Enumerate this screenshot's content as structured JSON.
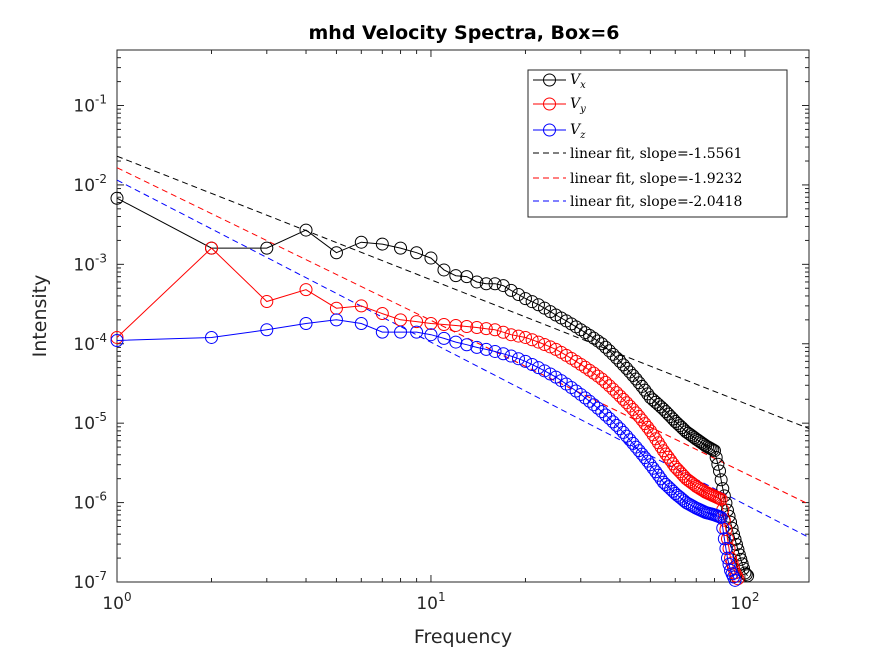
{
  "chart_data": {
    "type": "line",
    "title": "mhd Velocity Spectra, Box=6",
    "xlabel": "Frequency",
    "ylabel": "Intensity",
    "xscale": "log",
    "yscale": "log",
    "xlim": [
      1,
      160
    ],
    "ylim": [
      1e-07,
      0.5
    ],
    "grid": false,
    "legend_location": "top-right",
    "x_ticks": [
      {
        "base": "10",
        "exp": "0",
        "value": 1
      },
      {
        "base": "10",
        "exp": "1",
        "value": 10
      },
      {
        "base": "10",
        "exp": "2",
        "value": 100
      }
    ],
    "y_ticks": [
      {
        "base": "10",
        "exp": "-7",
        "value": 1e-07
      },
      {
        "base": "10",
        "exp": "-6",
        "value": 1e-06
      },
      {
        "base": "10",
        "exp": "-5",
        "value": 1e-05
      },
      {
        "base": "10",
        "exp": "-4",
        "value": 0.0001
      },
      {
        "base": "10",
        "exp": "-3",
        "value": 0.001
      },
      {
        "base": "10",
        "exp": "-2",
        "value": 0.01
      },
      {
        "base": "10",
        "exp": "-1",
        "value": 0.1
      }
    ],
    "series": [
      {
        "name": "Vx",
        "legend_main": "V",
        "legend_sub": "x",
        "color": "#000000",
        "style": "line-circle",
        "anchors": [
          [
            1,
            0.0068
          ],
          [
            2,
            0.0016
          ],
          [
            3,
            0.0016
          ],
          [
            4,
            0.0027
          ],
          [
            5,
            0.0014
          ],
          [
            6,
            0.0019
          ],
          [
            7,
            0.0018
          ],
          [
            8,
            0.0016
          ],
          [
            9,
            0.0014
          ],
          [
            10,
            0.0012
          ],
          [
            11,
            0.00085
          ],
          [
            12,
            0.00072
          ],
          [
            13,
            0.0007
          ],
          [
            14,
            0.0006
          ],
          [
            15,
            0.00057
          ],
          [
            16,
            0.00057
          ],
          [
            17,
            0.00054
          ],
          [
            18,
            0.00047
          ],
          [
            20,
            0.00037
          ],
          [
            22,
            0.00031
          ],
          [
            25,
            0.00023
          ],
          [
            30,
            0.00015
          ],
          [
            35,
            0.0001
          ],
          [
            40,
            6e-05
          ],
          [
            45,
            3.6e-05
          ],
          [
            50,
            2.1e-05
          ],
          [
            55,
            1.5e-05
          ],
          [
            60,
            1.05e-05
          ],
          [
            65,
            7.8e-06
          ],
          [
            70,
            6.3e-06
          ],
          [
            75,
            5.2e-06
          ],
          [
            80,
            4.5e-06
          ],
          [
            83,
            2.5e-06
          ],
          [
            85,
            1.5e-06
          ],
          [
            88,
            8e-07
          ],
          [
            92,
            4e-07
          ],
          [
            96,
            2.2e-07
          ],
          [
            100,
            1.3e-07
          ],
          [
            102,
            1.2e-07
          ]
        ]
      },
      {
        "name": "Vy",
        "legend_main": "V",
        "legend_sub": "y",
        "color": "#ff0000",
        "style": "line-circle",
        "anchors": [
          [
            1,
            0.00012
          ],
          [
            2,
            0.0016
          ],
          [
            3,
            0.00034
          ],
          [
            4,
            0.00048
          ],
          [
            5,
            0.00028
          ],
          [
            6,
            0.0003
          ],
          [
            7,
            0.00024
          ],
          [
            8,
            0.0002
          ],
          [
            9,
            0.00019
          ],
          [
            10,
            0.00018
          ],
          [
            12,
            0.00017
          ],
          [
            14,
            0.00016
          ],
          [
            16,
            0.00015
          ],
          [
            18,
            0.00013
          ],
          [
            20,
            0.00012
          ],
          [
            22,
            0.000105
          ],
          [
            25,
            8.5e-05
          ],
          [
            30,
            5.5e-05
          ],
          [
            35,
            3.6e-05
          ],
          [
            40,
            2.2e-05
          ],
          [
            45,
            1.35e-05
          ],
          [
            50,
            8e-06
          ],
          [
            55,
            4.5e-06
          ],
          [
            60,
            2.8e-06
          ],
          [
            65,
            2e-06
          ],
          [
            70,
            1.6e-06
          ],
          [
            75,
            1.35e-06
          ],
          [
            80,
            1.2e-06
          ],
          [
            84,
            1.1e-06
          ],
          [
            86,
            6e-07
          ],
          [
            88,
            3.5e-07
          ],
          [
            90,
            2e-07
          ],
          [
            93,
            1.3e-07
          ],
          [
            95,
            1.1e-07
          ]
        ]
      },
      {
        "name": "Vz",
        "legend_main": "V",
        "legend_sub": "z",
        "color": "#0000ff",
        "style": "line-circle",
        "anchors": [
          [
            1,
            0.00011
          ],
          [
            2,
            0.00012
          ],
          [
            3,
            0.00015
          ],
          [
            4,
            0.00018
          ],
          [
            5,
            0.0002
          ],
          [
            6,
            0.00018
          ],
          [
            7,
            0.00014
          ],
          [
            8,
            0.00014
          ],
          [
            9,
            0.00014
          ],
          [
            10,
            0.00013
          ],
          [
            12,
            0.000105
          ],
          [
            14,
            9e-05
          ],
          [
            16,
            8e-05
          ],
          [
            18,
            7e-05
          ],
          [
            20,
            6e-05
          ],
          [
            22,
            5e-05
          ],
          [
            25,
            3.8e-05
          ],
          [
            30,
            2.3e-05
          ],
          [
            35,
            1.4e-05
          ],
          [
            40,
            8.5e-06
          ],
          [
            45,
            5e-06
          ],
          [
            50,
            3e-06
          ],
          [
            55,
            1.8e-06
          ],
          [
            60,
            1.3e-06
          ],
          [
            65,
            1e-06
          ],
          [
            70,
            8.5e-07
          ],
          [
            75,
            7.5e-07
          ],
          [
            80,
            7e-07
          ],
          [
            84,
            6.5e-07
          ],
          [
            86,
            3.5e-07
          ],
          [
            88,
            2e-07
          ],
          [
            90,
            1.4e-07
          ],
          [
            93,
            1.05e-07
          ]
        ]
      },
      {
        "name": "linear fit, slope=-1.5561",
        "legend_label": "linear fit, slope=-1.5561",
        "color": "#000000",
        "style": "dashed",
        "intercept": 0.023,
        "slope": -1.5561
      },
      {
        "name": "linear fit, slope=-1.9232",
        "legend_label": "linear fit, slope=-1.9232",
        "color": "#ff0000",
        "style": "dashed",
        "intercept": 0.0165,
        "slope": -1.9232
      },
      {
        "name": "linear fit, slope=-2.0418",
        "legend_label": "linear fit, slope=-2.0418",
        "color": "#0000ff",
        "style": "dashed",
        "intercept": 0.0115,
        "slope": -2.0418
      }
    ]
  }
}
